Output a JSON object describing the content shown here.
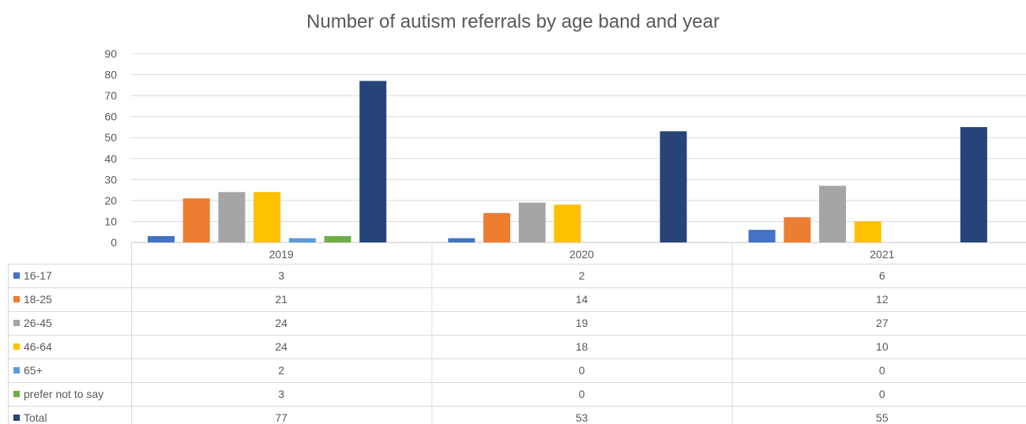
{
  "chart_data": {
    "type": "bar",
    "title": "Number of autism referrals by age band and year",
    "categories": [
      "2019",
      "2020",
      "2021"
    ],
    "ylim": [
      0,
      90
    ],
    "yticks": [
      0,
      10,
      20,
      30,
      40,
      50,
      60,
      70,
      80,
      90
    ],
    "grid": true,
    "legend": "data-table",
    "series": [
      {
        "name": "16-17",
        "color": "#4472C4",
        "values": [
          3,
          2,
          6
        ]
      },
      {
        "name": "18-25",
        "color": "#ED7D31",
        "values": [
          21,
          14,
          12
        ]
      },
      {
        "name": "26-45",
        "color": "#A5A5A5",
        "values": [
          24,
          19,
          27
        ]
      },
      {
        "name": "46-64",
        "color": "#FFC000",
        "values": [
          24,
          18,
          10
        ]
      },
      {
        "name": "65+",
        "color": "#5B9BD5",
        "values": [
          2,
          0,
          0
        ]
      },
      {
        "name": "prefer not to say",
        "color": "#70AD47",
        "values": [
          3,
          0,
          0
        ]
      },
      {
        "name": "Total",
        "color": "#264478",
        "values": [
          77,
          53,
          55
        ]
      }
    ]
  }
}
